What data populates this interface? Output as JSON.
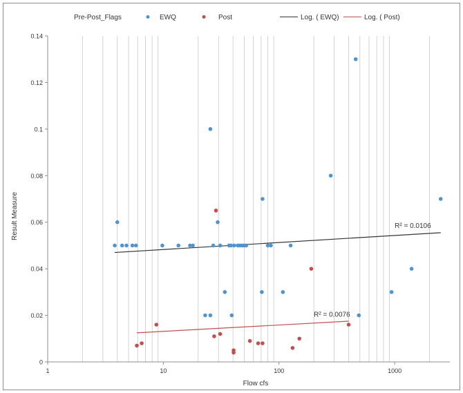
{
  "chart_data": {
    "type": "scatter",
    "x_scale": "log",
    "xlim": [
      1,
      3000
    ],
    "ylim": [
      0,
      0.14
    ],
    "xlabel": "Flow cfs",
    "ylabel": "Result Measure",
    "x_ticks": [
      {
        "value": 1,
        "label": "1"
      },
      {
        "value": 10,
        "label": "10"
      },
      {
        "value": 100,
        "label": "100"
      },
      {
        "value": 1000,
        "label": "1000"
      }
    ],
    "y_ticks": [
      {
        "value": 0,
        "label": "0"
      },
      {
        "value": 0.02,
        "label": "0.02"
      },
      {
        "value": 0.04,
        "label": "0.04"
      },
      {
        "value": 0.06,
        "label": "0.06"
      },
      {
        "value": 0.08,
        "label": "0.08"
      },
      {
        "value": 0.1,
        "label": "0.1"
      },
      {
        "value": 0.12,
        "label": "0.12"
      },
      {
        "value": 0.14,
        "label": "0.14"
      }
    ],
    "grid": "vertical minor log gridlines",
    "legend": {
      "placement": "top",
      "title": "Pre-Post_Flags",
      "entries": [
        {
          "label": "EWQ",
          "kind": "marker",
          "color": "#4f94cf"
        },
        {
          "label": "Post",
          "kind": "marker",
          "color": "#c0504d"
        },
        {
          "label": "Log. ( EWQ)",
          "kind": "line",
          "color": "#333333"
        },
        {
          "label": "Log. ( Post)",
          "kind": "line",
          "color": "#c0504d"
        }
      ]
    },
    "series": [
      {
        "name": "EWQ",
        "color": "#4f94cf",
        "points": [
          [
            3.8,
            0.05
          ],
          [
            4.0,
            0.06
          ],
          [
            4.4,
            0.05
          ],
          [
            4.8,
            0.05
          ],
          [
            5.4,
            0.05
          ],
          [
            5.8,
            0.05
          ],
          [
            9.8,
            0.05
          ],
          [
            13.5,
            0.05
          ],
          [
            17,
            0.05
          ],
          [
            18,
            0.05
          ],
          [
            23,
            0.02
          ],
          [
            25.5,
            0.02
          ],
          [
            25.5,
            0.1
          ],
          [
            27,
            0.05
          ],
          [
            29.5,
            0.06
          ],
          [
            31,
            0.05
          ],
          [
            34,
            0.03
          ],
          [
            37,
            0.05
          ],
          [
            38.5,
            0.05
          ],
          [
            39,
            0.02
          ],
          [
            41,
            0.05
          ],
          [
            44,
            0.05
          ],
          [
            46,
            0.05
          ],
          [
            48,
            0.05
          ],
          [
            50,
            0.05
          ],
          [
            52,
            0.05
          ],
          [
            71,
            0.03
          ],
          [
            72,
            0.07
          ],
          [
            80,
            0.05
          ],
          [
            85,
            0.05
          ],
          [
            108,
            0.03
          ],
          [
            126,
            0.05
          ],
          [
            280,
            0.08
          ],
          [
            460,
            0.13
          ],
          [
            490,
            0.02
          ],
          [
            940,
            0.03
          ],
          [
            1400,
            0.04
          ],
          [
            2500,
            0.07
          ]
        ]
      },
      {
        "name": "Post",
        "color": "#c0504d",
        "points": [
          [
            5.9,
            0.007
          ],
          [
            6.5,
            0.008
          ],
          [
            8.7,
            0.016
          ],
          [
            27.5,
            0.011
          ],
          [
            28.5,
            0.065
          ],
          [
            31,
            0.012
          ],
          [
            40.5,
            0.004
          ],
          [
            40.5,
            0.005
          ],
          [
            56,
            0.009
          ],
          [
            66,
            0.008
          ],
          [
            72,
            0.008
          ],
          [
            131,
            0.006
          ],
          [
            150,
            0.01
          ],
          [
            190,
            0.04
          ],
          [
            400,
            0.016
          ]
        ]
      }
    ],
    "trendlines": [
      {
        "series": "EWQ",
        "type": "logarithmic",
        "color": "#333333",
        "x_range": [
          3.8,
          2500
        ],
        "y_range": [
          0.047,
          0.0555
        ],
        "label": "R² = 0.0106",
        "label_at": [
          1000,
          0.0575
        ]
      },
      {
        "series": "Post",
        "type": "logarithmic",
        "color": "#c0504d",
        "x_range": [
          5.9,
          400
        ],
        "y_range": [
          0.0125,
          0.0175
        ],
        "label": "R² = 0.0076",
        "label_at": [
          200,
          0.0195
        ]
      }
    ]
  }
}
